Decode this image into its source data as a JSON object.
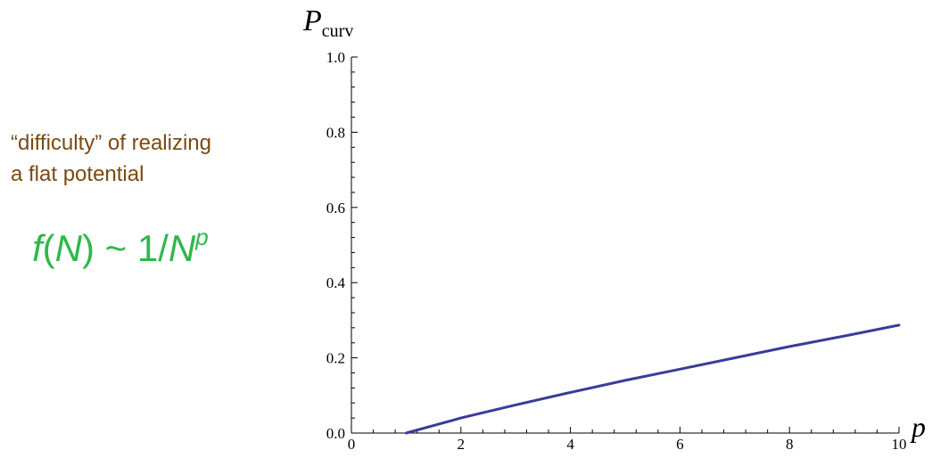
{
  "colors": {
    "annotation_text": "#7b4a12",
    "formula_text": "#2fb84a",
    "series_line": "#3b3b9a",
    "axis": "#000000"
  },
  "annotation": {
    "line1": "“difficulty” of realizing",
    "line2": "a flat potential"
  },
  "formula": {
    "f": "f",
    "open": "(",
    "n1": "N",
    "mid": ") ~ 1/",
    "n2": "N",
    "exponent": "p"
  },
  "chart_data": {
    "type": "line",
    "xlabel": "p",
    "ylabel_main": "P",
    "ylabel_sub": "curv",
    "xlim": [
      0,
      10
    ],
    "ylim": [
      0,
      1.0
    ],
    "x_ticks": [
      0,
      2,
      4,
      6,
      8,
      10
    ],
    "y_ticks": [
      0.0,
      0.2,
      0.4,
      0.6,
      0.8,
      1.0
    ],
    "y_tick_labels": [
      "0.0",
      "0.2",
      "0.4",
      "0.6",
      "0.8",
      "1.0"
    ],
    "grid": false,
    "series": [
      {
        "x": [
          1.0,
          1.5,
          2,
          3,
          4,
          5,
          6,
          7,
          8,
          9,
          10
        ],
        "y": [
          0.0,
          0.02,
          0.04,
          0.075,
          0.108,
          0.14,
          0.17,
          0.2,
          0.23,
          0.258,
          0.287
        ]
      }
    ]
  }
}
